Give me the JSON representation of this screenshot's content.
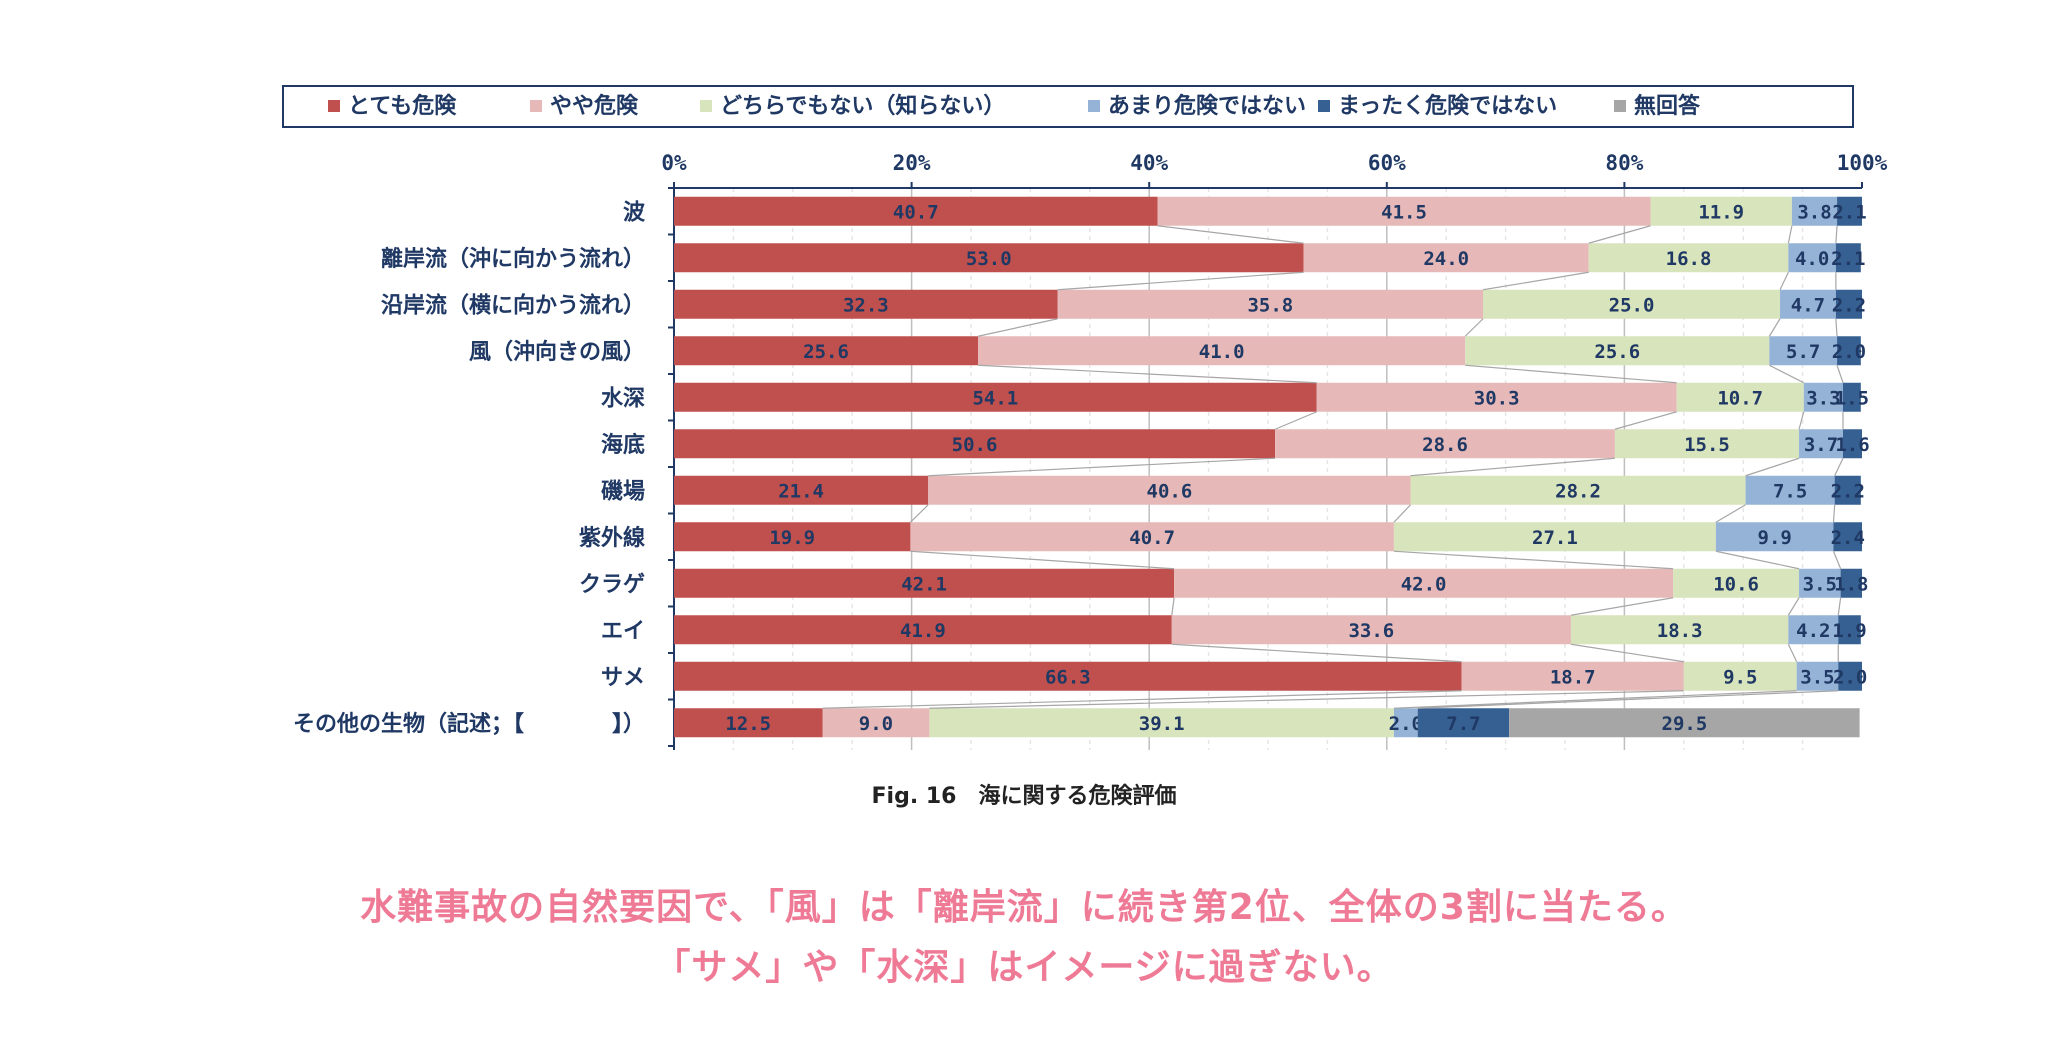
{
  "chart_data": {
    "type": "bar",
    "stacked": true,
    "orientation": "horizontal",
    "xlim": [
      0,
      100
    ],
    "x_ticks": [
      "0%",
      "20%",
      "40%",
      "60%",
      "80%",
      "100%"
    ],
    "grid": true,
    "legend_position": "top",
    "categories": [
      "波",
      "離岸流（沖に向かう流れ）",
      "沿岸流（横に向かう流れ）",
      "風（沖向きの風）",
      "水深",
      "海底",
      "磯場",
      "紫外線",
      "クラゲ",
      "エイ",
      "サメ",
      "その他の生物（記述；【　　　　】）"
    ],
    "series": [
      {
        "name": "とても危険",
        "color": "#c0504d",
        "values": [
          40.7,
          53.0,
          32.3,
          25.6,
          54.1,
          50.6,
          21.4,
          19.9,
          42.1,
          41.9,
          66.3,
          12.5
        ]
      },
      {
        "name": "やや危険",
        "color": "#e6b9b8",
        "values": [
          41.5,
          24.0,
          35.8,
          41.0,
          30.3,
          28.6,
          40.6,
          40.7,
          42.0,
          33.6,
          18.7,
          9.0
        ]
      },
      {
        "name": "どちらでもない（知らない）",
        "color": "#d8e4bc",
        "values": [
          11.9,
          16.8,
          25.0,
          25.6,
          10.7,
          15.5,
          28.2,
          27.1,
          10.6,
          18.3,
          9.5,
          39.1
        ]
      },
      {
        "name": "あまり危険ではない",
        "color": "#95b3d7",
        "values": [
          3.8,
          4.0,
          4.7,
          5.7,
          3.3,
          3.7,
          7.5,
          9.9,
          3.5,
          4.2,
          3.5,
          2.0
        ]
      },
      {
        "name": "まったく危険ではない",
        "color": "#366092",
        "values": [
          2.1,
          2.1,
          2.2,
          2.0,
          1.5,
          1.6,
          2.2,
          2.4,
          1.8,
          1.9,
          2.0,
          7.7
        ]
      },
      {
        "name": "無回答",
        "color": "#a6a6a6",
        "values": [
          0,
          0,
          0,
          0,
          0,
          0,
          0,
          0,
          0,
          0,
          0,
          29.5
        ]
      }
    ],
    "value_labels": [
      [
        "40.7",
        "41.5",
        "11.9",
        "3.8",
        "2.1",
        ""
      ],
      [
        "53.0",
        "24.0",
        "16.8",
        "4.0",
        "2.1",
        ""
      ],
      [
        "32.3",
        "35.8",
        "25.0",
        "4.7",
        "2.2",
        ""
      ],
      [
        "25.6",
        "41.0",
        "25.6",
        "5.7",
        "2.0",
        ""
      ],
      [
        "54.1",
        "30.3",
        "10.7",
        "3.3",
        "1.5",
        ""
      ],
      [
        "50.6",
        "28.6",
        "15.5",
        "3.7",
        "1.6",
        ""
      ],
      [
        "21.4",
        "40.6",
        "28.2",
        "7.5",
        "2.2",
        ""
      ],
      [
        "19.9",
        "40.7",
        "27.1",
        "9.9",
        "2.4",
        ""
      ],
      [
        "42.1",
        "42.0",
        "10.6",
        "3.5",
        "1.8",
        ""
      ],
      [
        "41.9",
        "33.6",
        "18.3",
        "4.2",
        "1.9",
        ""
      ],
      [
        "66.3",
        "18.7",
        "9.5",
        "3.5",
        "2.0",
        ""
      ],
      [
        "12.5",
        "9.0",
        "39.1",
        "2.0",
        "7.7",
        "29.5"
      ]
    ]
  },
  "caption": "Fig. 16　海に関する危険評価",
  "headline_line1": "水難事故の自然要因で、「風」は「離岸流」に続き第2位、全体の3割に当たる。",
  "headline_line2": "「サメ」や「水深」はイメージに過ぎない。"
}
